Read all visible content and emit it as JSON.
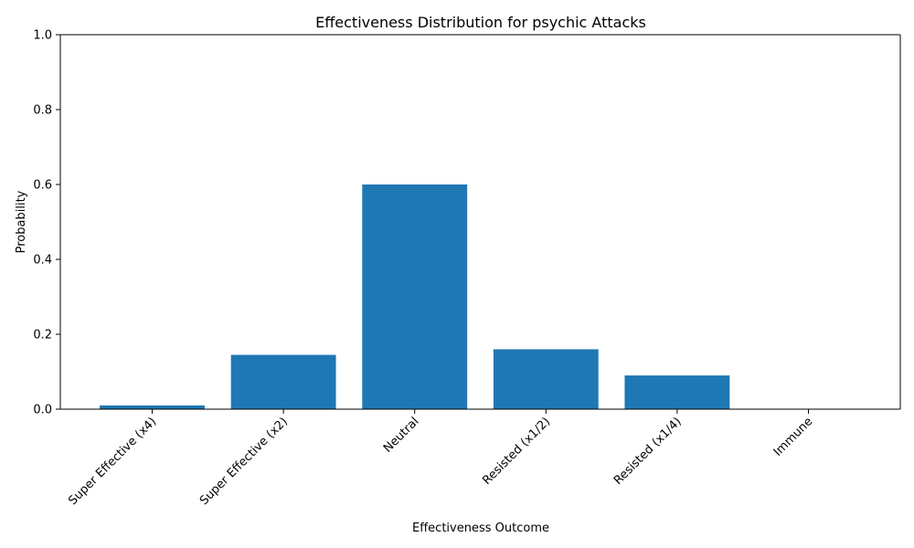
{
  "chart_data": {
    "type": "bar",
    "title": "Effectiveness Distribution for psychic Attacks",
    "xlabel": "Effectiveness Outcome",
    "ylabel": "Probability",
    "categories": [
      "Super Effective (x4)",
      "Super Effective (x2)",
      "Neutral",
      "Resisted (x1/2)",
      "Resisted (x1/4)",
      "Immune"
    ],
    "values": [
      0.01,
      0.145,
      0.6,
      0.16,
      0.09,
      0.0
    ],
    "ylim": [
      0,
      1.0
    ],
    "yticks": [
      "0.0",
      "0.2",
      "0.4",
      "0.6",
      "0.8",
      "1.0"
    ],
    "ytick_values": [
      0,
      0.2,
      0.4,
      0.6,
      0.8,
      1.0
    ],
    "grid": false,
    "bar_color": "#1f77b4"
  }
}
